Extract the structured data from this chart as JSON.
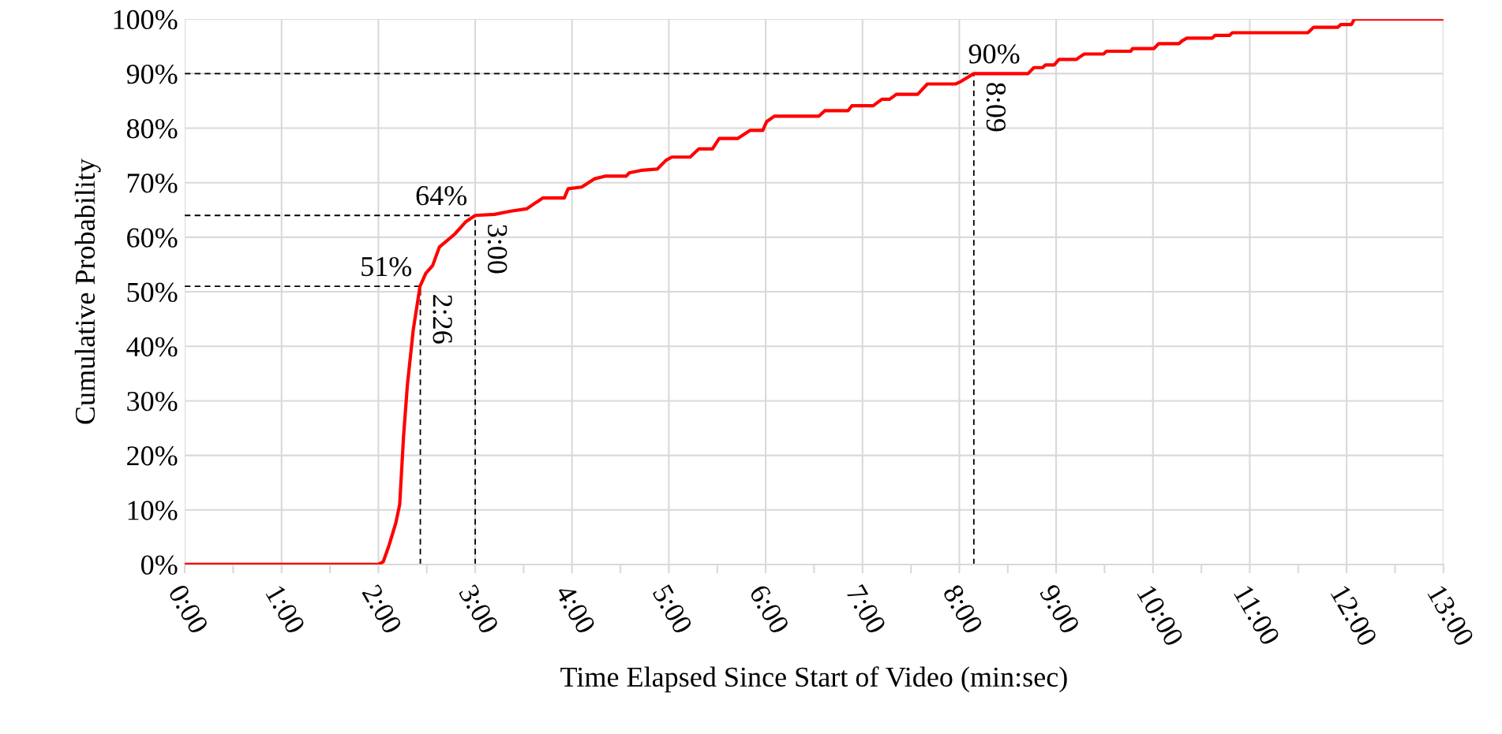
{
  "chart_data": {
    "type": "line",
    "xlabel": "Time Elapsed Since Start of Video (min:sec)",
    "ylabel": "Cumulative Probability",
    "series": [
      {
        "color": "#ff0000",
        "x": [
          0,
          2.0,
          2.05,
          2.11,
          2.18,
          2.22,
          2.26,
          2.3,
          2.36,
          2.43,
          2.49,
          2.56,
          2.63,
          2.71,
          2.79,
          2.9,
          3.0,
          3.2,
          3.37,
          3.53,
          3.63,
          3.7,
          3.92,
          3.96,
          4.1,
          4.23,
          4.34,
          4.56,
          4.59,
          4.73,
          4.88,
          4.97,
          5.03,
          5.22,
          5.31,
          5.45,
          5.52,
          5.71,
          5.84,
          5.97,
          6.01,
          6.09,
          6.55,
          6.61,
          6.85,
          6.89,
          7.11,
          7.2,
          7.28,
          7.35,
          7.57,
          7.67,
          7.96,
          8.02,
          8.15,
          8.71,
          8.77,
          8.86,
          8.89,
          8.98,
          9.03,
          9.21,
          9.24,
          9.29,
          9.49,
          9.52,
          9.77,
          9.79,
          10.01,
          10.06,
          10.27,
          10.3,
          10.35,
          10.61,
          10.64,
          10.79,
          10.82,
          11.6,
          11.66,
          11.91,
          11.94,
          12.05,
          12.08,
          13.0
        ],
        "values": [
          0,
          0,
          0.5,
          3.5,
          7.6,
          11,
          23.5,
          33,
          43,
          51,
          53.4,
          54.8,
          58.2,
          59.4,
          60.6,
          62.8,
          64,
          64.2,
          64.8,
          65.2,
          66.4,
          67.2,
          67.2,
          68.9,
          69.2,
          70.7,
          71.2,
          71.2,
          71.8,
          72.3,
          72.5,
          74.1,
          74.7,
          74.7,
          76.2,
          76.2,
          78.1,
          78.1,
          79.6,
          79.6,
          81.2,
          82.2,
          82.2,
          83.2,
          83.2,
          84.1,
          84.1,
          85.3,
          85.3,
          86.2,
          86.2,
          88.1,
          88.1,
          88.6,
          90,
          90,
          91.1,
          91.1,
          91.6,
          91.6,
          92.6,
          92.6,
          93.0,
          93.6,
          93.6,
          94.1,
          94.1,
          94.6,
          94.6,
          95.5,
          95.5,
          96.0,
          96.5,
          96.5,
          97.0,
          97.0,
          97.5,
          97.5,
          98.5,
          98.5,
          99.0,
          99.0,
          100,
          100
        ]
      }
    ],
    "xlim": [
      0,
      13
    ],
    "ylim": [
      0,
      100
    ],
    "xticks": [
      {
        "value": 0,
        "label": "0:00"
      },
      {
        "value": 0.5,
        "label": null
      },
      {
        "value": 1,
        "label": "1:00"
      },
      {
        "value": 1.5,
        "label": null
      },
      {
        "value": 2,
        "label": "2:00"
      },
      {
        "value": 2.5,
        "label": null
      },
      {
        "value": 3,
        "label": "3:00"
      },
      {
        "value": 3.5,
        "label": null
      },
      {
        "value": 4,
        "label": "4:00"
      },
      {
        "value": 4.5,
        "label": null
      },
      {
        "value": 5,
        "label": "5:00"
      },
      {
        "value": 5.5,
        "label": null
      },
      {
        "value": 6,
        "label": "6:00"
      },
      {
        "value": 6.5,
        "label": null
      },
      {
        "value": 7,
        "label": "7:00"
      },
      {
        "value": 7.5,
        "label": null
      },
      {
        "value": 8,
        "label": "8:00"
      },
      {
        "value": 8.5,
        "label": null
      },
      {
        "value": 9,
        "label": "9:00"
      },
      {
        "value": 9.5,
        "label": null
      },
      {
        "value": 10,
        "label": "10:00"
      },
      {
        "value": 10.5,
        "label": null
      },
      {
        "value": 11,
        "label": "11:00"
      },
      {
        "value": 11.5,
        "label": null
      },
      {
        "value": 12,
        "label": "12:00"
      },
      {
        "value": 12.5,
        "label": null
      },
      {
        "value": 13,
        "label": "13:00"
      }
    ],
    "yticks": [
      {
        "value": 0,
        "label": "0%"
      },
      {
        "value": 10,
        "label": "10%"
      },
      {
        "value": 20,
        "label": "20%"
      },
      {
        "value": 30,
        "label": "30%"
      },
      {
        "value": 40,
        "label": "40%"
      },
      {
        "value": 50,
        "label": "50%"
      },
      {
        "value": 60,
        "label": "60%"
      },
      {
        "value": 70,
        "label": "70%"
      },
      {
        "value": 80,
        "label": "80%"
      },
      {
        "value": 90,
        "label": "90%"
      },
      {
        "value": 100,
        "label": "100%"
      }
    ],
    "grid": true,
    "marker": "none",
    "line_style": "solid",
    "ref_lines": [
      {
        "axis": "y",
        "value": 51,
        "label": "51%",
        "color": "#000000",
        "line_style": "dashed"
      },
      {
        "axis": "x",
        "value": 2.4333,
        "label": "2:26",
        "color": "#000000",
        "line_style": "dashed"
      },
      {
        "axis": "y",
        "value": 64,
        "label": "64%",
        "color": "#000000",
        "line_style": "dashed"
      },
      {
        "axis": "x",
        "value": 3.0,
        "label": "3:00",
        "color": "#000000",
        "line_style": "dashed"
      },
      {
        "axis": "y",
        "value": 90,
        "label": "90%",
        "color": "#000000",
        "line_style": "dashed"
      },
      {
        "axis": "x",
        "value": 8.15,
        "label": "8:09",
        "color": "#000000",
        "line_style": "dashed"
      }
    ]
  }
}
